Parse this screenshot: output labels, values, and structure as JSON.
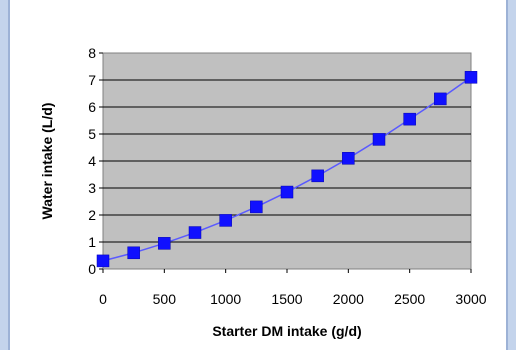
{
  "chart_data": {
    "type": "line",
    "title": "",
    "xlabel": "Starter DM intake (g/d)",
    "ylabel": "Water intake (L/d)",
    "xlim": [
      0,
      3000
    ],
    "ylim": [
      0,
      8
    ],
    "x_ticks": [
      "0",
      "500",
      "1000",
      "1500",
      "2000",
      "2500",
      "3000"
    ],
    "y_ticks": [
      "0",
      "1",
      "2",
      "3",
      "4",
      "5",
      "6",
      "7",
      "8"
    ],
    "grid": true,
    "legend": "none",
    "colors": {
      "plot_bg": "#c0c0c0",
      "line": "#5a5aff",
      "marker": "#1010ff",
      "page_bg": "#c4d4ec"
    },
    "series": [
      {
        "x": [
          0,
          250,
          500,
          750,
          1000,
          1250,
          1500,
          1750,
          2000,
          2250,
          2500,
          2750,
          3000
        ],
        "y": [
          0.3,
          0.6,
          0.95,
          1.35,
          1.8,
          2.3,
          2.85,
          3.45,
          4.1,
          4.8,
          5.55,
          6.3,
          7.1
        ]
      }
    ]
  }
}
